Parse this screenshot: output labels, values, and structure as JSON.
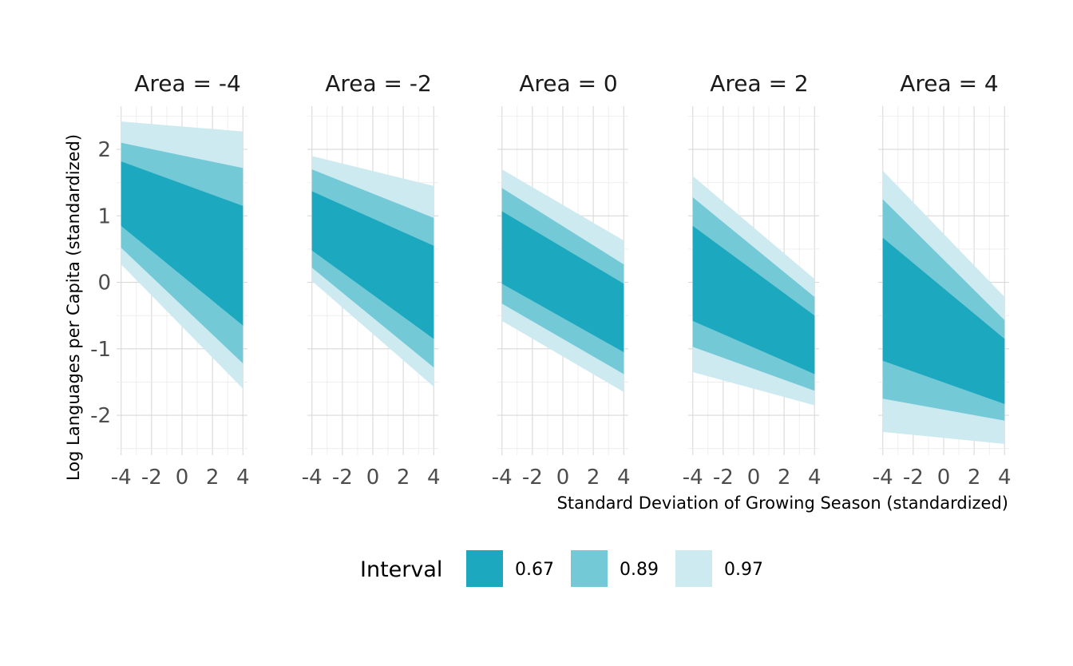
{
  "chart_data": {
    "type": "area",
    "facet_variable": "Area",
    "panels": [
      {
        "title": "Area = -4",
        "area": -4,
        "x": [
          -4,
          4
        ],
        "bands": [
          {
            "interval": "0.67",
            "lower": [
              0.85,
              -0.65
            ],
            "upper": [
              1.82,
              1.15
            ]
          },
          {
            "interval": "0.89",
            "lower": [
              0.52,
              -1.22
            ],
            "upper": [
              2.1,
              1.72
            ]
          },
          {
            "interval": "0.97",
            "lower": [
              0.27,
              -1.6
            ],
            "upper": [
              2.42,
              2.27
            ]
          }
        ]
      },
      {
        "title": "Area = -2",
        "area": -2,
        "x": [
          -4,
          4
        ],
        "bands": [
          {
            "interval": "0.67",
            "lower": [
              0.48,
              -0.85
            ],
            "upper": [
              1.37,
              0.55
            ]
          },
          {
            "interval": "0.89",
            "lower": [
              0.22,
              -1.28
            ],
            "upper": [
              1.7,
              0.97
            ]
          },
          {
            "interval": "0.97",
            "lower": [
              0.02,
              -1.57
            ],
            "upper": [
              1.9,
              1.45
            ]
          }
        ]
      },
      {
        "title": "Area = 0",
        "area": 0,
        "x": [
          -4,
          4
        ],
        "bands": [
          {
            "interval": "0.67",
            "lower": [
              -0.02,
              -1.05
            ],
            "upper": [
              1.07,
              -0.02
            ]
          },
          {
            "interval": "0.89",
            "lower": [
              -0.32,
              -1.38
            ],
            "upper": [
              1.42,
              0.27
            ]
          },
          {
            "interval": "0.97",
            "lower": [
              -0.58,
              -1.65
            ],
            "upper": [
              1.7,
              0.63
            ]
          }
        ]
      },
      {
        "title": "Area = 2",
        "area": 2,
        "x": [
          -4,
          4
        ],
        "bands": [
          {
            "interval": "0.67",
            "lower": [
              -0.58,
              -1.38
            ],
            "upper": [
              0.85,
              -0.5
            ]
          },
          {
            "interval": "0.89",
            "lower": [
              -0.97,
              -1.63
            ],
            "upper": [
              1.28,
              -0.22
            ]
          },
          {
            "interval": "0.97",
            "lower": [
              -1.35,
              -1.85
            ],
            "upper": [
              1.6,
              0.05
            ]
          }
        ]
      },
      {
        "title": "Area = 4",
        "area": 4,
        "x": [
          -4,
          4
        ],
        "bands": [
          {
            "interval": "0.67",
            "lower": [
              -1.18,
              -1.83
            ],
            "upper": [
              0.67,
              -0.85
            ]
          },
          {
            "interval": "0.89",
            "lower": [
              -1.75,
              -2.08
            ],
            "upper": [
              1.25,
              -0.57
            ]
          },
          {
            "interval": "0.97",
            "lower": [
              -2.25,
              -2.43
            ],
            "upper": [
              1.68,
              -0.22
            ]
          }
        ]
      }
    ],
    "xlabel": "Standard Deviation of Growing Season (standardized)",
    "ylabel": "Log Languages per Capita (standardized)",
    "xlim": [
      -4.3,
      4.3
    ],
    "ylim": [
      -2.6,
      2.65
    ],
    "xticks": [
      -4,
      -2,
      0,
      2,
      4
    ],
    "xtick_labels": [
      "-4",
      "-2",
      "0",
      "2",
      "4"
    ],
    "yticks": [
      -2,
      -1,
      0,
      1,
      2
    ],
    "ytick_labels": [
      "-2",
      "-1",
      "0",
      "1",
      "2"
    ],
    "grid": true,
    "legend": {
      "title": "Interval",
      "position": "bottom",
      "entries": [
        {
          "label": "0.67",
          "color": "#1CA8BE"
        },
        {
          "label": "0.89",
          "color": "#74C9D7"
        },
        {
          "label": "0.97",
          "color": "#CDEAF0"
        }
      ]
    }
  }
}
